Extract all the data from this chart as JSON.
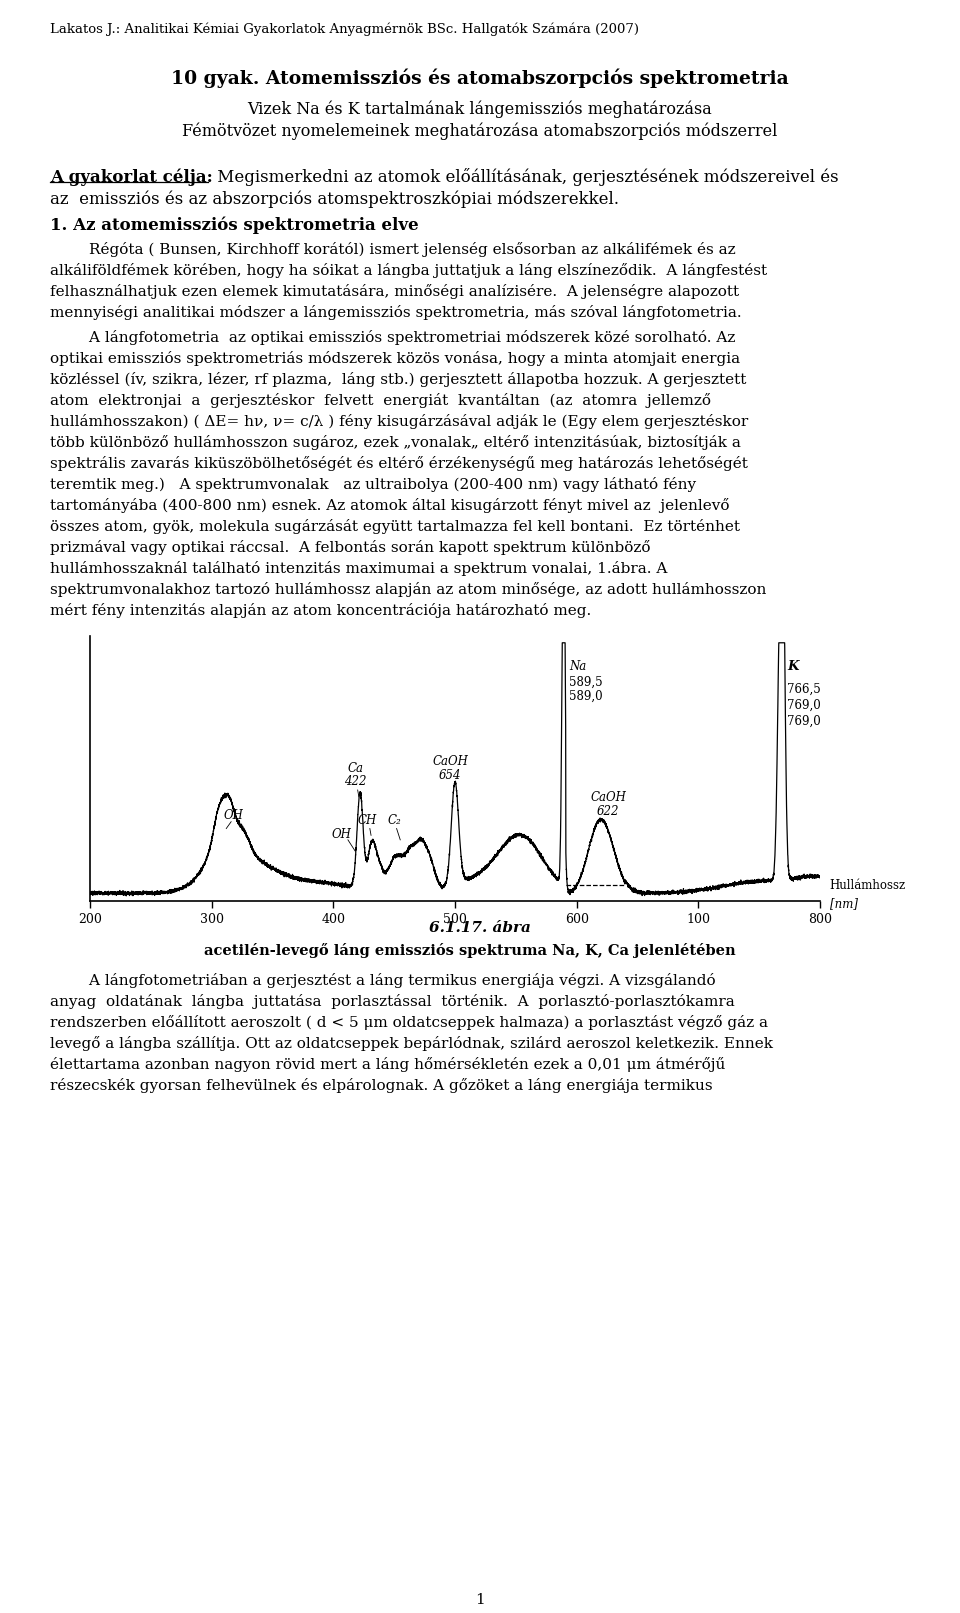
{
  "header": "Lakatos J.: Analitikai Kémiai Gyakorlatok Anyagmérnök BSc. Hallgatók Számára (2007)",
  "title_bold": "10 gyak. Atomemissziós és atomabszorpciós spektrometria",
  "subtitle1": "Vizek Na és K tartalmának lángemissziós meghatározása",
  "subtitle2": "Fémötvözet nyomelemeinek meghatározása atomabszorpciós módszerrel",
  "section_label": "A gyakorlat célja:",
  "section_text": " Megismerkedni az atomok előállításának, gerjesztésének módszereivel és",
  "section_text2": "az  emissziós és az abszorpciós atomspektroszkópiai módszerekkel.",
  "section1_title": "1. Az atomemissziós spektrometria elve",
  "fig_caption": "6.1.17. ábra",
  "fig_subcaption": "acetilén-levegő láng emissziós spektruma Na, K, Ca jelenlétében",
  "page_number": "1",
  "background_color": "#ffffff",
  "text_color": "#000000",
  "p1_lines": [
    "        Régóta ( Bunsen, Kirchhoff korától) ismert jelenség elsősorban az alkálifémek és az",
    "alkáliföldfémek körében, hogy ha sóikat a lángba juttatjuk a láng elszíneződik.  A lángfestést",
    "felhasználhatjuk ezen elemek kimutatására, minőségi analízisére.  A jelenségre alapozott",
    "mennyiségi analitikai módszer a lángemissziós spektrometria, más szóval lángfotometria."
  ],
  "p2_lines": [
    "        A lángfotometria  az optikai emissziós spektrometriai módszerek közé sorolható. Az",
    "optikai emissziós spektrometriás módszerek közös vonása, hogy a minta atomjait energia",
    "közléssel (ív, szikra, lézer, rf plazma,  láng stb.) gerjesztett állapotba hozzuk. A gerjesztett",
    "atom  elektronjai  a  gerjesztéskor  felvett  energiát  kvantáltan  (az  atomra  jellemző",
    "hullámhosszakon) ( ΔE= hν, ν= c/λ ) fény kisugárzásával adják le (Egy elem gerjesztéskor",
    "több különböző hullámhosszon sugároz, ezek „vonalak„ eltérő intenzitásúak, biztosítják a",
    "spektrális zavarás kiküszöbölhetőségét és eltérő érzékenységű meg határozás lehetőségét",
    "teremtik meg.)   A spektrumvonalak   az ultraibolya (200-400 nm) vagy látható fény",
    "tartományába (400-800 nm) esnek. Az atomok által kisugárzott fényt mivel az  jelenlevő",
    "összes atom, gyök, molekula sugárzását együtt tartalmazza fel kell bontani.  Ez történhet",
    "prizmával vagy optikai ráccsal.  A felbontás során kapott spektrum különböző",
    "hullámhosszaknál található intenzitás maximumai a spektrum vonalai, 1.ábra. A",
    "spektrumvonalakhoz tartozó hullámhossz alapján az atom minősége, az adott hullámhosszon",
    "mért fény intenzitás alapján az atom koncentrációja határozható meg."
  ],
  "p3_lines": [
    "        A lángfotometriában a gerjesztést a láng termikus energiája végzi. A vizsgálandó",
    "anyag  oldatának  lángba  juttatása  porlasztással  történik.  A  porlasztó-porlasztókamra",
    "rendszerben előállított aeroszolt ( d < 5 μm oldatcseppek halmaza) a porlasztást végző gáz a",
    "levegő a lángba szállítja. Ott az oldatcseppek bepárlódnak, szilárd aeroszol keletkezik. Ennek",
    "élettartama azonban nagyon rövid mert a láng hőmérsékletén ezek a 0,01 μm átmérőjű",
    "részecskék gyorsan felhevülnek és elpárolognak. A gőzöket a láng energiája termikus"
  ]
}
